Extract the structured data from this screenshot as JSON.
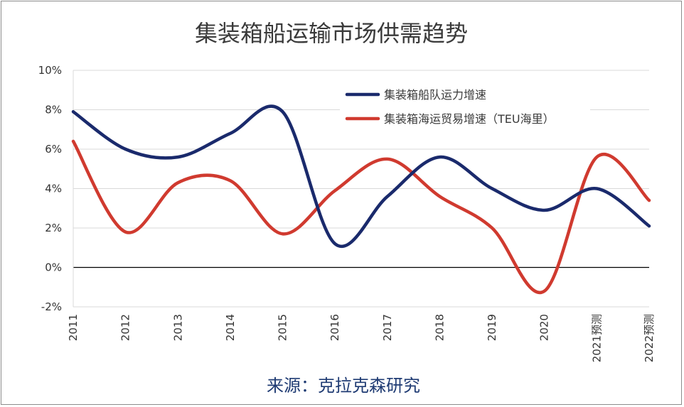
{
  "chart_data": {
    "type": "line",
    "title": "集装箱船运输市场供需趋势",
    "source": "来源：克拉克森研究",
    "x": [
      "2011",
      "2012",
      "2013",
      "2014",
      "2015",
      "2016",
      "2017",
      "2018",
      "2019",
      "2020",
      "2021预测",
      "2022预测"
    ],
    "y_ticks": [
      "10%",
      "8%",
      "6%",
      "4%",
      "2%",
      "0%",
      "-2%"
    ],
    "ylim": [
      -2,
      10
    ],
    "y_unit": "%",
    "grid": true,
    "legend_position": "top-right",
    "series": [
      {
        "name": "集装箱船队运力增速",
        "color": "#1a2a6c",
        "values": [
          7.9,
          6.0,
          5.6,
          6.8,
          7.9,
          1.2,
          3.6,
          5.6,
          4.0,
          2.9,
          4.0,
          2.1
        ]
      },
      {
        "name": "集装箱海运贸易增速（TEU海里）",
        "color": "#d03a2f",
        "values": [
          6.4,
          1.8,
          4.3,
          4.4,
          1.7,
          3.9,
          5.5,
          3.6,
          2.0,
          -1.2,
          5.6,
          3.4
        ]
      }
    ]
  }
}
